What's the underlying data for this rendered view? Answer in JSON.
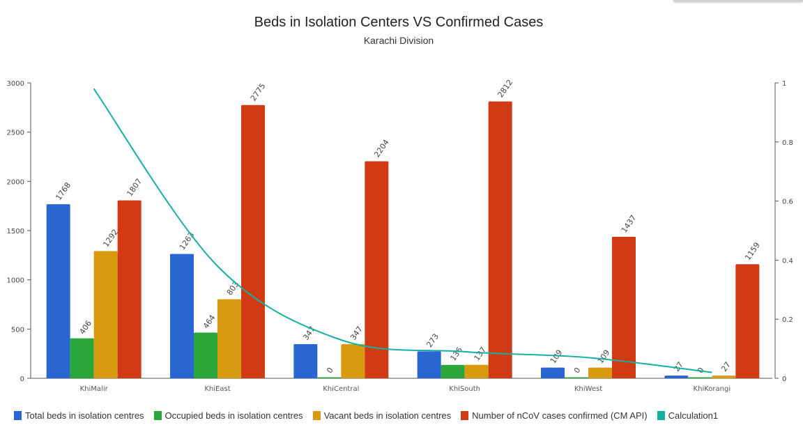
{
  "chart_data": {
    "type": "bar",
    "title": "Beds in Isolation Centers VS Confirmed Cases",
    "subtitle": "Karachi Division",
    "categories": [
      "KhiMalir",
      "KhiEast",
      "KhiCentral",
      "KhiSouth",
      "KhiWest",
      "KhiKorangi"
    ],
    "series": [
      {
        "name": "Total beds in isolation centres",
        "color": "#2a66d1",
        "values": [
          1768,
          1263,
          347,
          273,
          109,
          27
        ]
      },
      {
        "name": "Occupied beds in isolation centres",
        "color": "#2aa63a",
        "values": [
          406,
          464,
          0,
          136,
          0,
          0
        ]
      },
      {
        "name": "Vacant beds in isolation centres",
        "color": "#d89b10",
        "values": [
          1292,
          803,
          347,
          137,
          109,
          27
        ]
      },
      {
        "name": "Number of nCoV cases confirmed (CM API)",
        "color": "#d03a14",
        "values": [
          1807,
          2775,
          2204,
          2812,
          1437,
          1159
        ]
      }
    ],
    "line": {
      "name": "Calculation1",
      "color": "#14b0a0",
      "values": [
        0.98,
        0.38,
        0.13,
        0.09,
        0.07,
        0.02
      ]
    },
    "y_left": {
      "ylim": [
        0,
        3000
      ],
      "ticks": [
        "0",
        "500",
        "1000",
        "1500",
        "2000",
        "2500",
        "3000"
      ]
    },
    "y_right": {
      "ylim": [
        0,
        1
      ],
      "ticks": [
        "0",
        "0.2",
        "0.4",
        "0.6",
        "0.8",
        "1"
      ]
    },
    "legend_position": "bottom-left"
  }
}
